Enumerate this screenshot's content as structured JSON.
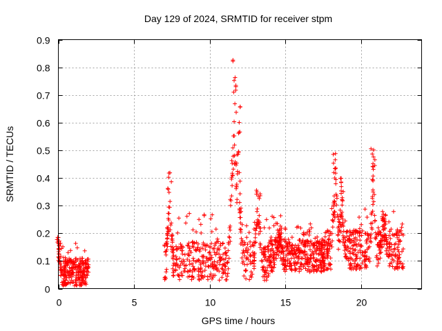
{
  "chart_data": {
    "type": "scatter",
    "title": "Day 129 of 2024, SRMTID for receiver stpm",
    "xlabel": "GPS time / hours",
    "ylabel": "SRMTID / TECUs",
    "xlim": [
      0,
      24
    ],
    "ylim": [
      0,
      0.9
    ],
    "xticks": [
      0,
      5,
      10,
      15,
      20
    ],
    "xtick_labels": [
      "0",
      "5",
      "10",
      "15",
      "20"
    ],
    "yticks": [
      0,
      0.1,
      0.2,
      0.3,
      0.4,
      0.5,
      0.6,
      0.7,
      0.8,
      0.9
    ],
    "ytick_labels": [
      "0",
      "0.1",
      "0.2",
      "0.3",
      "0.4",
      "0.5",
      "0.6",
      "0.7",
      "0.8",
      "0.9"
    ],
    "grid": true,
    "marker": "+",
    "marker_color": "#ff0000",
    "series": [
      {
        "name": "SRMTID",
        "segments": [
          {
            "x_range": [
              0.0,
              2.0
            ],
            "base": 0.06,
            "spread": 0.05,
            "count": 260,
            "peaks": [
              [
                0.05,
                0.19,
                0.15
              ]
            ]
          },
          {
            "x_range": [
              7.0,
              13.9
            ],
            "base": 0.1,
            "spread": 0.07,
            "count": 520,
            "peaks": [
              [
                7.35,
                0.42,
                0.25
              ],
              [
                11.6,
                0.84,
                0.4
              ],
              [
                11.9,
                0.66,
                0.3
              ],
              [
                13.2,
                0.38,
                0.35
              ]
            ]
          },
          {
            "x_range": [
              13.9,
              17.6
            ],
            "base": 0.12,
            "spread": 0.06,
            "count": 420,
            "peaks": [
              [
                14.6,
                0.23,
                0.4
              ]
            ]
          },
          {
            "x_range": [
              17.6,
              22.8
            ],
            "base": 0.14,
            "spread": 0.07,
            "count": 480,
            "peaks": [
              [
                18.3,
                0.49,
                0.3
              ],
              [
                18.7,
                0.4,
                0.3
              ],
              [
                20.8,
                0.51,
                0.25
              ],
              [
                21.5,
                0.28,
                0.5
              ]
            ]
          }
        ]
      }
    ]
  }
}
